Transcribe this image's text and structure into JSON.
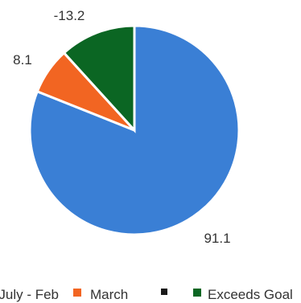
{
  "chart_data": {
    "type": "pie",
    "slices": [
      {
        "name": "July - Feb",
        "label": "91.1",
        "value": 91.1,
        "color": "#3a7fd5"
      },
      {
        "name": "March",
        "label": "8.1",
        "value": 8.1,
        "color": "#f26522"
      },
      {
        "name": "",
        "label": "",
        "value": 0,
        "color": "#1a1a1a"
      },
      {
        "name": "Exceeds Goal",
        "label": "-13.2",
        "value": 13.2,
        "color": "#0b6623"
      }
    ],
    "legend": {
      "placement": "bottom",
      "entries": [
        {
          "label": "July - Feb",
          "color": "#3a7fd5"
        },
        {
          "label": "March",
          "color": "#f26522"
        },
        {
          "label": "",
          "color": "#1a1a1a"
        },
        {
          "label": "Exceeds Goal",
          "color": "#0b6623"
        }
      ]
    }
  }
}
